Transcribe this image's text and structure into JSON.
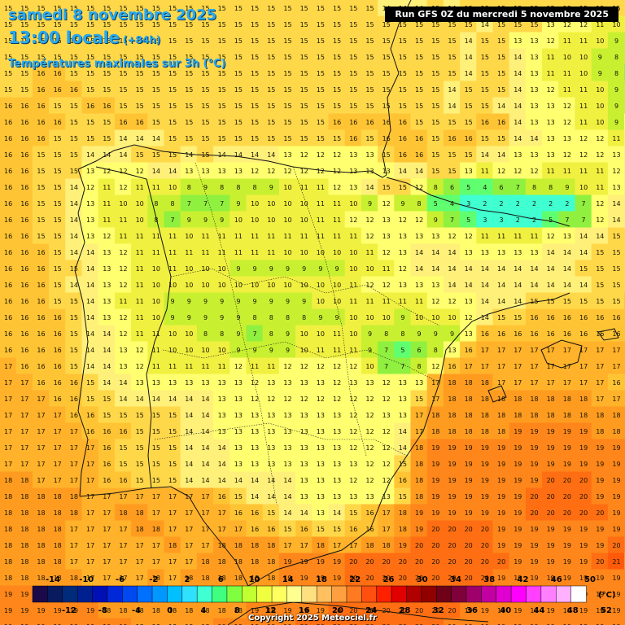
{
  "header": {
    "date_line": "samedi 8 novembre 2025",
    "time_line": "13:00 locale",
    "lead_time": "(+84h)",
    "variable_line": "Températures maximales sur 3h (°C)",
    "run_info": "Run GFS 0Z du mercredi 5 novembre 2025"
  },
  "legend": {
    "unit": "(°C)",
    "upper_labels": [
      "-14",
      "-10",
      "-6",
      "-2",
      "2",
      "6",
      "10",
      "14",
      "18",
      "22",
      "26",
      "30",
      "34",
      "38",
      "42",
      "46",
      "50"
    ],
    "lower_labels": [
      "-12",
      "-8",
      "-4",
      "0",
      "4",
      "8",
      "12",
      "16",
      "20",
      "24",
      "28",
      "32",
      "36",
      "40",
      "44",
      "48",
      "52"
    ],
    "colors": [
      "#1a0a4a",
      "#0a1a5e",
      "#002a7a",
      "#00208f",
      "#0010b4",
      "#0028d8",
      "#0048f0",
      "#0070ff",
      "#0098ff",
      "#00c0ff",
      "#30e0ff",
      "#40ffd0",
      "#40ff80",
      "#80ff40",
      "#c0ff30",
      "#f0ff40",
      "#ffff60",
      "#ffff90",
      "#ffe080",
      "#ffc060",
      "#ffa040",
      "#ff7a20",
      "#ff5010",
      "#ff2000",
      "#e00000",
      "#b00000",
      "#900000",
      "#700018",
      "#80003a",
      "#a0006a",
      "#c000a0",
      "#e000d0",
      "#ff00ff",
      "#ff40ff",
      "#ff80ff",
      "#ffb0ff",
      "#ffffff"
    ]
  },
  "copyright": "Copyright 2025 Meteociel.fr",
  "temperature_grid": {
    "rows": [
      "15 15 15 15 15 15 15 15 15 15 15 15 15 15 15 15 15 15 15 15 15 15 15 14 14 14 15 14 15 15 15 15 15 15 15 15 15 15",
      "15 15 15 15 15 15 15 15 15 15 15 15 15 15 15 15 15 15 15 15 15 15 15 15 15 15 15 15 15 14 15 15 15 13 12 12 11 10 10 9",
      "15 15 15 15 15 15 15 15 15 15 15 15 15 15 15 15 15 15 15 15 15 15 15 15 15 15 15 15 14 15 15 13 13 12 11 11 10 9 9 8",
      "15 15 15 15 15 15 15 15 15 15 15 15 15 15 15 15 15 15 15 15 15 15 15 15 15 15 15 15 14 15 15 14 13 11 10 10 9 8 8 8",
      "15 15 16 16 15 15 15 15 15 15 15 15 15 15 15 15 15 15 15 15 15 15 15 15 15 15 15 15 14 15 15 14 13 11 11 10 9 8 7 7",
      "15 15 16 16 16 15 15 15 15 15 15 15 15 15 15 15 15 15 15 15 15 15 15 15 15 15 15 14 15 15 15 14 13 12 11 11 10 9 9 9",
      "16 16 16 15 15 16 16 15 15 15 15 15 15 15 15 15 15 15 15 15 15 15 15 15 15 15 15 14 15 15 14 14 13 13 12 11 10 9 9 12",
      "16 16 16 16 15 15 15 16 16 15 15 15 15 15 15 15 15 15 15 15 16 16 16 16 16 15 15 15 15 16 16 14 13 13 12 11 10 9 12 12",
      "16 16 16 15 15 15 15 14 14 14 15 15 15 15 15 15 15 15 15 15 15 16 15 16 16 16 15 16 16 15 15 14 14 13 13 12 12 11 14 15",
      "16 16 15 15 15 14 14 14 15 15 15 14 15 14 14 14 14 13 12 12 12 13 13 15 16 16 15 15 15 14 14 13 13 13 12 12 12 13 14 15",
      "16 16 15 15 15 13 12 12 12 14 14 13 13 13 13 12 12 12 12 12 12 13 13 13 14 14 15 15 13 11 12 12 12 11 11 11 11 12 14 15",
      "16 16 15 15 14 12 11 12 11 11 10 8 9 8 8 8 9 10 11 11 12 13 14 15 15 12 8 6 5 4 6 7 8 8 9 10 11 13 14 15",
      "16 16 15 15 14 13 11 10 10 8 8 7 7 7 9 10 10 10 10 11 11 10 9 12 9 8 5 4 3 2 2 2 2 2 2 7 12 14 14 15",
      "16 16 15 15 14 13 11 11 10 8 7 9 9 9 10 10 10 10 10 11 11 12 12 13 12 12 9 7 5 3 3 2 2 5 7 7 12 14 14 15",
      "16 16 15 15 14 13 12 11 11 11 11 10 11 11 11 11 11 11 11 11 11 11 12 13 13 13 13 12 12 11 11 11 11 12 13 14 14 15 15 15",
      "16 16 16 15 14 14 13 12 11 11 11 11 11 11 11 11 11 10 10 10 10 10 11 12 13 14 14 14 13 13 13 13 13 14 14 14 15 15 15 15",
      "16 16 16 15 15 14 13 12 11 10 11 10 10 10 9 9 9 9 9 9 9 10 10 11 12 14 14 14 14 14 14 14 14 14 14 15 15 15 15 15",
      "16 16 16 15 14 14 13 12 11 10 10 10 10 10 10 10 10 10 10 10 10 11 12 12 13 13 13 14 14 14 14 14 14 14 14 14 15 15 15 16",
      "16 16 16 15 15 14 13 11 11 10 9 9 9 9 9 9 9 9 9 10 10 11 11 11 11 11 12 12 13 14 14 14 15 15 15 15 15 15 16 16",
      "16 16 16 16 15 14 13 12 11 10 9 9 9 9 9 8 8 8 8 9 9 10 10 10 9 10 10 10 12 14 15 15 16 16 16 16 16 16 16 16",
      "16 16 16 16 15 14 14 12 11 11 10 10 8 8 9 7 8 9 10 10 11 10 9 8 8 9 9 9 13 16 16 16 16 16 16 16 16 16 16 16",
      "16 16 16 16 15 14 14 13 12 11 10 10 10 10 9 9 9 9 10 11 11 11 9 7 5 6 8 13 16 17 17 17 17 17 17 17 17 17 17 17",
      "17 16 16 16 15 14 14 13 12 11 11 11 11 11 12 11 11 12 12 12 12 12 10 7 7 8 12 16 17 17 17 17 17 17 17 17 17 17 17 17",
      "17 17 16 16 16 15 14 14 13 13 13 13 13 13 13 12 13 13 13 13 12 13 13 12 13 13 17 18 18 18 17 17 17 17 17 17 17 16 16 16",
      "17 17 17 16 16 15 15 14 14 14 14 14 14 13 13 12 12 12 12 12 12 12 12 12 13 15 17 18 18 18 18 18 18 18 18 18 17 17 17 16",
      "17 17 17 17 16 16 15 15 15 15 15 14 14 13 13 13 13 13 13 13 13 12 12 13 13 17 18 18 18 18 18 18 18 18 18 18 18 18 18 17",
      "17 17 17 17 17 16 16 16 15 15 15 14 14 13 13 13 13 13 13 13 13 12 12 12 14 17 18 18 18 18 18 19 19 19 19 19 18 18 18 18",
      "17 17 17 17 17 17 16 15 15 15 15 14 14 14 13 13 13 13 13 13 13 12 12 12 14 18 19 19 19 19 19 19 19 19 19 19 19 19 19 18",
      "17 17 17 17 17 17 16 15 15 15 15 14 14 14 13 13 13 13 13 13 13 13 12 12 15 18 19 19 19 19 19 19 19 19 19 19 19 19 19 19",
      "18 18 17 17 17 17 16 16 15 15 15 14 14 14 14 14 14 14 13 13 13 12 12 12 16 18 19 19 19 19 19 19 19 20 20 20 19 19 19 19",
      "18 18 18 18 18 17 17 17 17 17 17 17 17 16 15 14 14 14 13 13 13 13 13 13 15 18 19 19 19 19 19 19 20 20 20 20 19 19 19 19",
      "18 18 18 18 18 17 17 18 18 17 17 17 17 17 16 16 15 14 14 13 14 15 16 17 18 19 19 19 19 19 19 19 20 20 20 20 20 19 19 19",
      "18 18 18 18 17 17 17 17 18 18 17 17 17 17 17 16 16 15 16 15 15 16 16 17 18 19 20 20 20 20 19 19 19 19 19 19 19 19 19 19",
      "18 18 18 18 17 17 17 17 17 17 18 17 17 18 18 18 18 17 17 18 17 17 18 18 19 20 20 20 20 20 19 19 19 19 19 19 19 20 19 19",
      "18 18 18 18 17 17 17 17 17 17 17 17 18 18 18 18 18 19 19 19 19 20 20 20 20 20 20 20 20 20 20 19 19 19 19 19 20 21 18 18",
      "18 18 18 18 18 17 17 17 17 18 17 18 18 18 18 18 18 19 19 19 19 20 20 20 20 20 20 20 20 20 19 19 19 19 19 19 19 19 19 19",
      "19 19 18 18 18 18 18 18 18 18 18 18 18 18 19 19 19 19 19 19 20 20 20 20 20 20 20 20 20 20 19 19 19 19 19 19 19 19 19 19",
      "19 19 19 19 19 19 18 18 18 18 18 18 18 18 18 19 19 19 19 19 20 20 20 20 20 20 20 20 19 19 19 19 19 19 19 19 19 19 19 19",
      "19 19 19 19 19 19 19 19 18 18 18 18 18 19 19 19 19 19 20 20 20 20 20 20 20 20 20 19 19 19 19 19 19 19 19 19 19 19 19 19"
    ]
  }
}
